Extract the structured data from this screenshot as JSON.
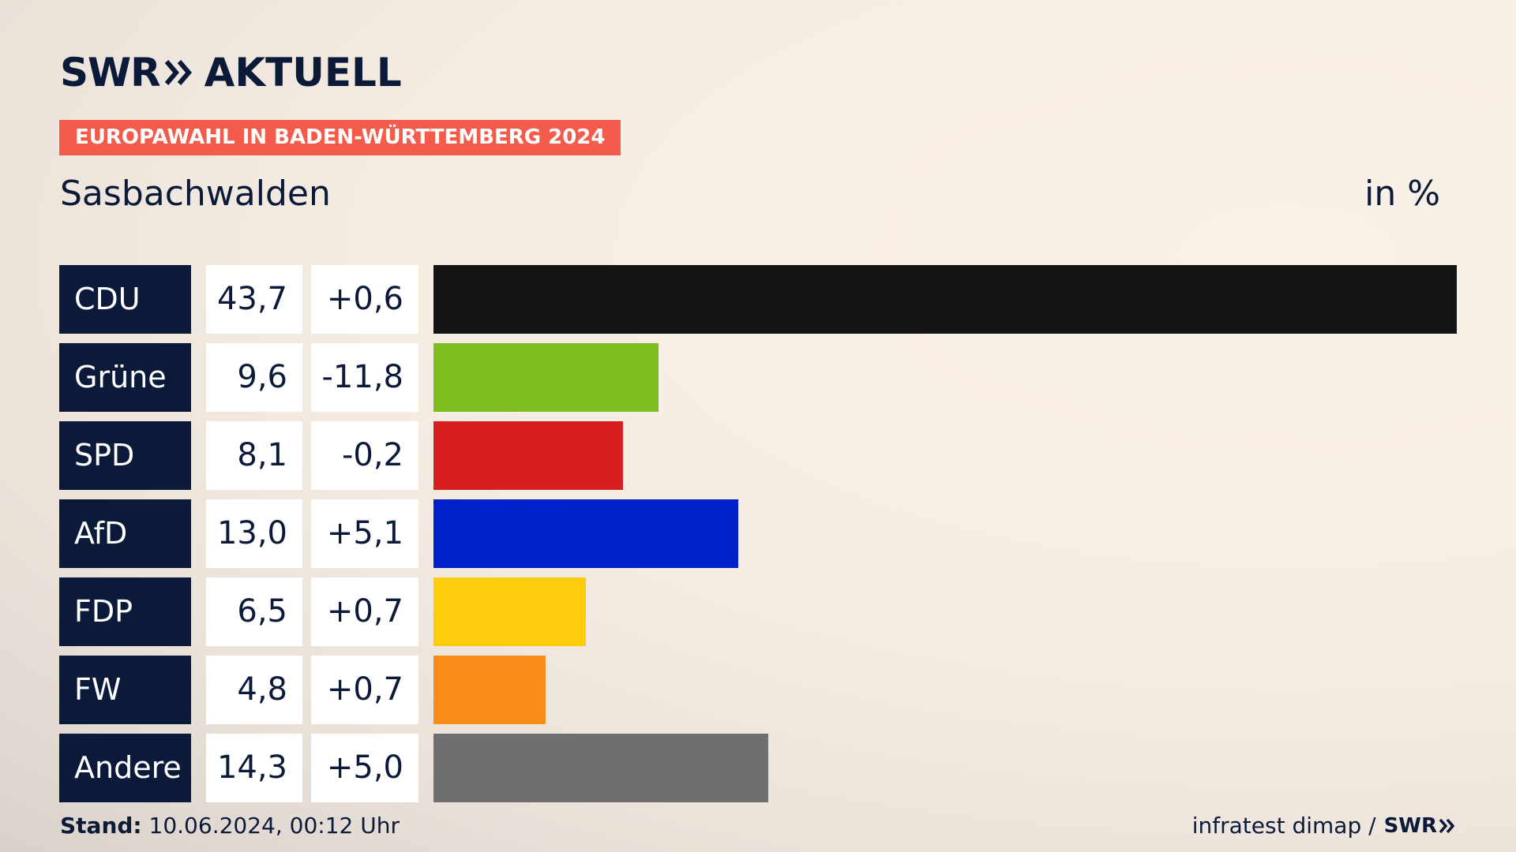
{
  "brand": {
    "logo_text": "SWR",
    "logo_suffix": "AKTUELL"
  },
  "header": {
    "badge": "EUROPAWAHL IN BADEN-WÜRTTEMBERG 2024",
    "region": "Sasbachwalden",
    "unit": "in %"
  },
  "chart_data": {
    "type": "bar",
    "orientation": "horizontal",
    "categories": [
      "CDU",
      "Grüne",
      "SPD",
      "AfD",
      "FDP",
      "FW",
      "Andere"
    ],
    "values": [
      43.7,
      9.6,
      8.1,
      13.0,
      6.5,
      4.8,
      14.3
    ],
    "value_labels": [
      "43,7",
      "9,6",
      "8,1",
      "13,0",
      "6,5",
      "4,8",
      "14,3"
    ],
    "diff_labels": [
      "+0,6",
      "-11,8",
      "-0,2",
      "+5,1",
      "+0,7",
      "+0,7",
      "+5,0"
    ],
    "colors": [
      "#141414",
      "#7bbe1e",
      "#d71f1f",
      "#0020c8",
      "#fdcc0a",
      "#fa8c1a",
      "#6e6f71"
    ],
    "unit": "in %",
    "title": "Sasbachwalden"
  },
  "footer": {
    "stand_label": "Stand:",
    "stand_value": "10.06.2024, 00:12 Uhr",
    "source": "infratest dimap /",
    "source_brand": "SWR"
  }
}
